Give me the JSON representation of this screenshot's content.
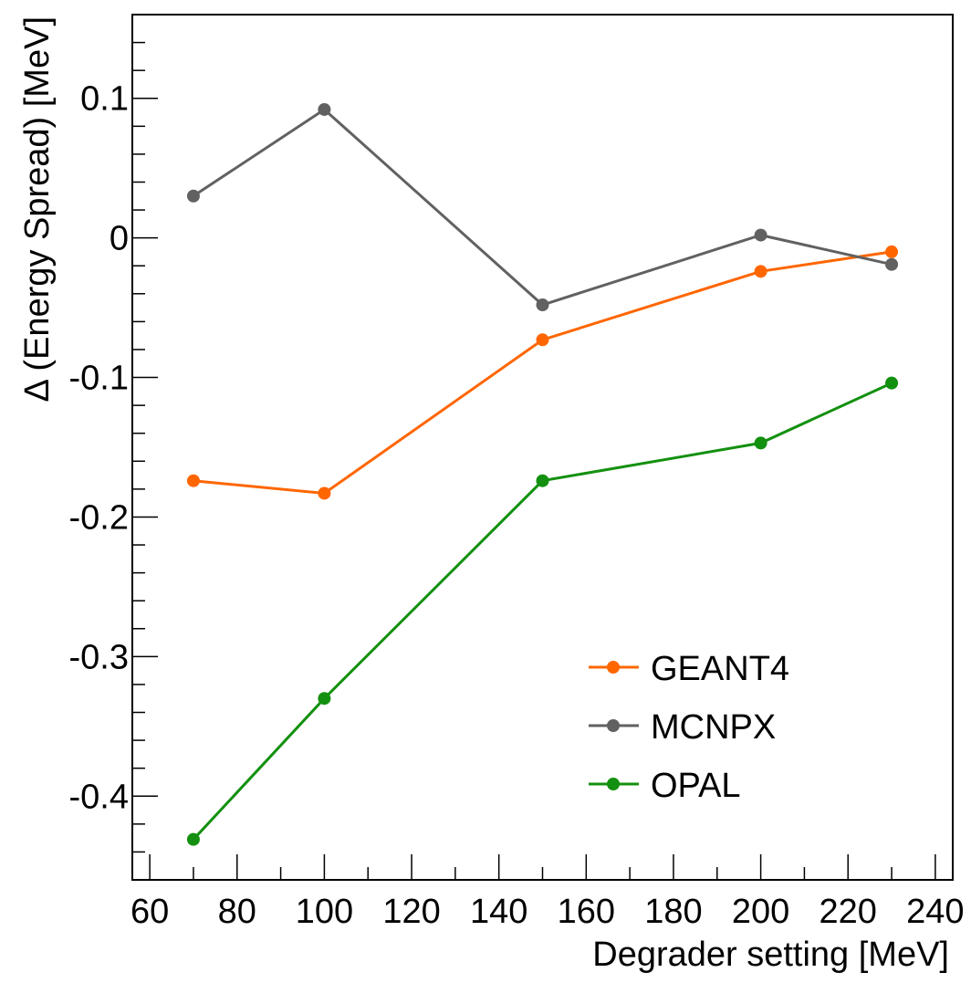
{
  "chart_data": {
    "type": "line",
    "title": "",
    "xlabel": "Degrader setting [MeV]",
    "ylabel": "Δ (Energy Spread) [MeV]",
    "xlim": [
      56,
      244
    ],
    "ylim": [
      -0.46,
      0.16
    ],
    "x_ticks": [
      60,
      80,
      100,
      120,
      140,
      160,
      180,
      200,
      220,
      240
    ],
    "x_tick_labels": [
      "60",
      "80",
      "100",
      "120",
      "140",
      "160",
      "180",
      "200",
      "220",
      "240"
    ],
    "y_ticks": [
      0.1,
      0,
      -0.1,
      -0.2,
      -0.3,
      -0.4
    ],
    "y_tick_labels": [
      "0.1",
      "0",
      "-0.1",
      "-0.2",
      "-0.3",
      "-0.4"
    ],
    "grid": false,
    "legend_position": "bottom-right",
    "x": [
      70,
      100,
      150,
      200,
      230
    ],
    "series": [
      {
        "name": "GEANT4",
        "color": "#ff6600",
        "values": [
          -0.174,
          -0.183,
          -0.073,
          -0.024,
          -0.01
        ]
      },
      {
        "name": "MCNPX",
        "color": "#616161",
        "values": [
          0.03,
          0.092,
          -0.048,
          0.002,
          -0.019
        ]
      },
      {
        "name": "OPAL",
        "color": "#13900f",
        "values": [
          -0.431,
          -0.33,
          -0.174,
          -0.147,
          -0.104
        ]
      }
    ]
  }
}
